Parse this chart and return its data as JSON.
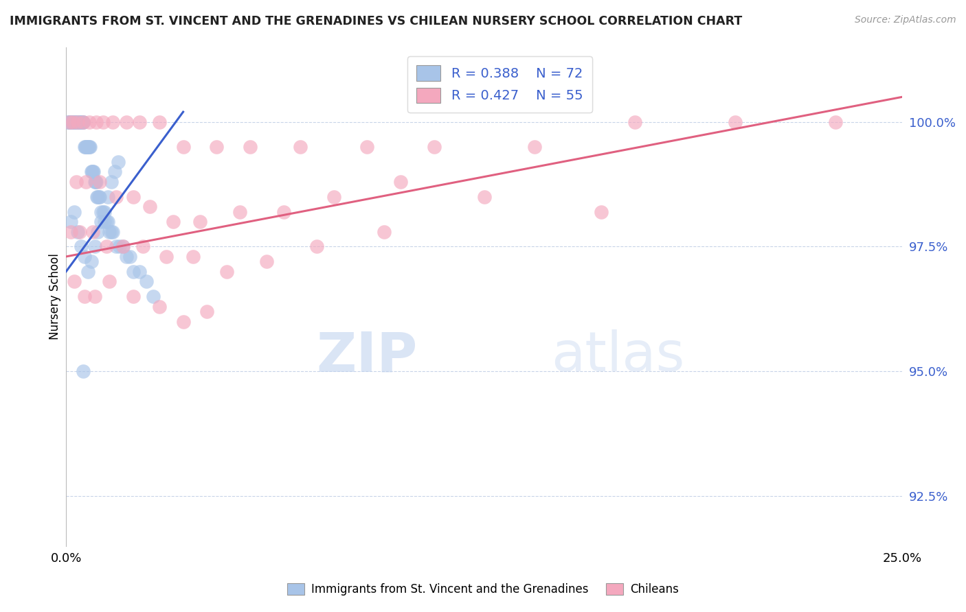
{
  "title": "IMMIGRANTS FROM ST. VINCENT AND THE GRENADINES VS CHILEAN NURSERY SCHOOL CORRELATION CHART",
  "source": "Source: ZipAtlas.com",
  "xlabel": "",
  "ylabel": "Nursery School",
  "xmin": 0.0,
  "xmax": 25.0,
  "ymin": 91.5,
  "ymax": 101.5,
  "yticks": [
    92.5,
    95.0,
    97.5,
    100.0
  ],
  "ytick_labels": [
    "92.5%",
    "95.0%",
    "97.5%",
    "100.0%"
  ],
  "xticks": [
    0.0,
    25.0
  ],
  "xtick_labels": [
    "0.0%",
    "25.0%"
  ],
  "blue_R": 0.388,
  "blue_N": 72,
  "pink_R": 0.427,
  "pink_N": 55,
  "blue_color": "#A8C4E8",
  "pink_color": "#F4A8BE",
  "blue_line_color": "#3A5FCD",
  "pink_line_color": "#E06080",
  "grid_color": "#C8D4E8",
  "legend_label_blue": "Immigrants from St. Vincent and the Grenadines",
  "legend_label_pink": "Chileans",
  "blue_line_x0": 0.0,
  "blue_line_y0": 97.0,
  "blue_line_x1": 3.5,
  "blue_line_y1": 100.2,
  "pink_line_x0": 0.0,
  "pink_line_y0": 97.3,
  "pink_line_x1": 25.0,
  "pink_line_y1": 100.5,
  "blue_scatter_x": [
    0.05,
    0.08,
    0.1,
    0.12,
    0.15,
    0.18,
    0.2,
    0.22,
    0.25,
    0.28,
    0.3,
    0.32,
    0.35,
    0.38,
    0.4,
    0.42,
    0.45,
    0.48,
    0.5,
    0.52,
    0.55,
    0.58,
    0.6,
    0.62,
    0.65,
    0.68,
    0.7,
    0.72,
    0.75,
    0.78,
    0.8,
    0.82,
    0.85,
    0.88,
    0.9,
    0.92,
    0.95,
    0.98,
    1.0,
    1.05,
    1.1,
    1.15,
    1.2,
    1.25,
    1.3,
    1.35,
    1.4,
    1.5,
    1.6,
    1.7,
    1.8,
    1.9,
    2.0,
    2.2,
    2.4,
    2.6,
    0.15,
    0.25,
    0.35,
    0.45,
    0.55,
    0.65,
    0.75,
    0.85,
    0.95,
    1.05,
    1.15,
    1.25,
    1.35,
    1.45,
    1.55,
    0.5
  ],
  "blue_scatter_y": [
    100.0,
    100.0,
    100.0,
    100.0,
    100.0,
    100.0,
    100.0,
    100.0,
    100.0,
    100.0,
    100.0,
    100.0,
    100.0,
    100.0,
    100.0,
    100.0,
    100.0,
    100.0,
    100.0,
    100.0,
    99.5,
    99.5,
    99.5,
    99.5,
    99.5,
    99.5,
    99.5,
    99.5,
    99.0,
    99.0,
    99.0,
    99.0,
    98.8,
    98.8,
    98.8,
    98.5,
    98.5,
    98.5,
    98.5,
    98.2,
    98.2,
    98.0,
    98.0,
    98.0,
    97.8,
    97.8,
    97.8,
    97.5,
    97.5,
    97.5,
    97.3,
    97.3,
    97.0,
    97.0,
    96.8,
    96.5,
    98.0,
    98.2,
    97.8,
    97.5,
    97.3,
    97.0,
    97.2,
    97.5,
    97.8,
    98.0,
    98.2,
    98.5,
    98.8,
    99.0,
    99.2,
    95.0
  ],
  "pink_scatter_x": [
    0.1,
    0.2,
    0.35,
    0.5,
    0.7,
    0.9,
    1.1,
    1.4,
    1.8,
    2.2,
    2.8,
    3.5,
    4.5,
    5.5,
    7.0,
    9.0,
    11.0,
    14.0,
    17.0,
    20.0,
    23.0,
    0.3,
    0.6,
    1.0,
    1.5,
    2.0,
    2.5,
    3.2,
    4.0,
    5.2,
    6.5,
    8.0,
    10.0,
    12.5,
    16.0,
    0.15,
    0.4,
    0.8,
    1.2,
    1.7,
    2.3,
    3.0,
    3.8,
    4.8,
    6.0,
    7.5,
    9.5,
    0.25,
    0.55,
    0.85,
    1.3,
    2.0,
    2.8,
    3.5,
    4.2
  ],
  "pink_scatter_y": [
    100.0,
    100.0,
    100.0,
    100.0,
    100.0,
    100.0,
    100.0,
    100.0,
    100.0,
    100.0,
    100.0,
    99.5,
    99.5,
    99.5,
    99.5,
    99.5,
    99.5,
    99.5,
    100.0,
    100.0,
    100.0,
    98.8,
    98.8,
    98.8,
    98.5,
    98.5,
    98.3,
    98.0,
    98.0,
    98.2,
    98.2,
    98.5,
    98.8,
    98.5,
    98.2,
    97.8,
    97.8,
    97.8,
    97.5,
    97.5,
    97.5,
    97.3,
    97.3,
    97.0,
    97.2,
    97.5,
    97.8,
    96.8,
    96.5,
    96.5,
    96.8,
    96.5,
    96.3,
    96.0,
    96.2
  ]
}
